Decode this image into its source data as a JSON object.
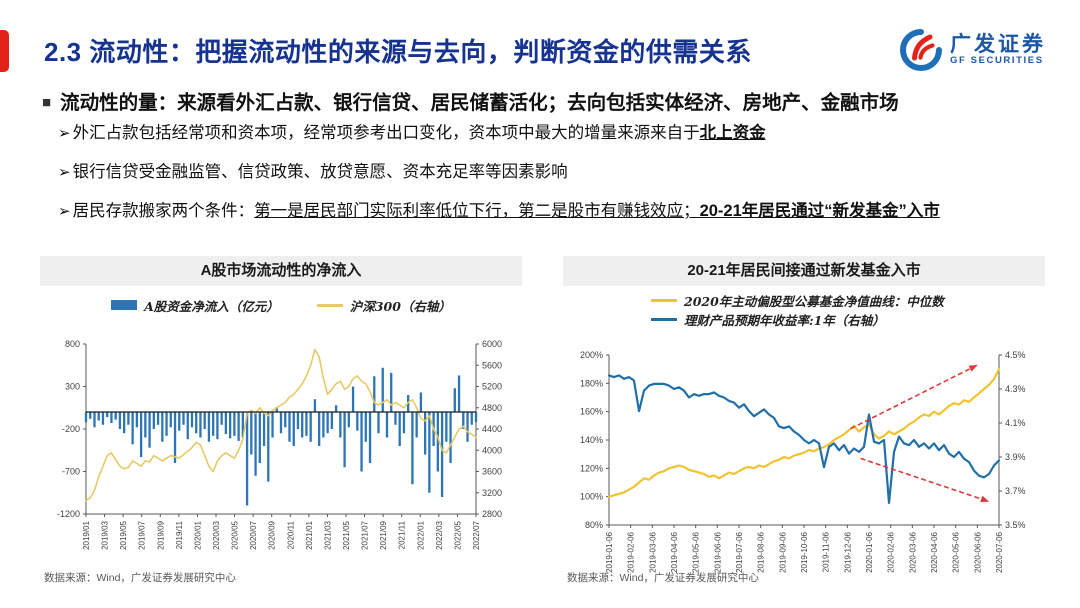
{
  "header": {
    "title": "2.3 流动性：把握流动性的来源与去向，判断资金的供需关系",
    "logo_cn": "广发证券",
    "logo_en": "GF SECURITIES"
  },
  "bullet": {
    "marker": "■",
    "text": "流动性的量：来源看外汇占款、银行信贷、居民储蓄活化；去向包括实体经济、房地产、金融市场"
  },
  "points_marker": "➢",
  "points": [
    {
      "text": "外汇占款包括经常项和资本项，经常项参考出口变化，资本项中最大的增量来源来自于",
      "strong": "北上资金"
    },
    {
      "text": "银行信贷受金融监管、信贷政策、放贷意愿、资本充足率等因素影响"
    },
    {
      "text": "居民存款搬家两个条件：",
      "underline": "第一是居民部门实际利率低位下行，第二是股市有赚钱效应；",
      "strong": "20-21年居民通过“新发基金”入市"
    }
  ],
  "colors": {
    "accent_red": "#E2231A",
    "title_blue": "#16338F",
    "logo_blue": "#1B57A6",
    "banner_gray": "#EFEFEF",
    "arrow_red": "#D93B3B"
  },
  "chart_data": [
    {
      "type": "bar",
      "title": "A股市场流动性的净流入",
      "legend": [
        {
          "label": "A股资金净流入（亿元）",
          "swatch": "bar"
        },
        {
          "label": "沪深300（右轴）",
          "swatch": "line"
        }
      ],
      "y_left": {
        "min": -1200,
        "max": 800,
        "ticks": [
          800,
          300,
          -200,
          -700,
          -1200
        ]
      },
      "y_right": {
        "min": 2800,
        "max": 6000,
        "ticks": [
          6000,
          5600,
          5200,
          4800,
          4400,
          4000,
          3600,
          3200,
          2800
        ]
      },
      "zero_line": true,
      "x_labels": [
        "2019/01",
        "2019/03",
        "2019/05",
        "2019/07",
        "2019/09",
        "2019/11",
        "2020/01",
        "2020/03",
        "2020/05",
        "2020/07",
        "2020/09",
        "2020/11",
        "2021/01",
        "2021/03",
        "2021/05",
        "2021/07",
        "2021/09",
        "2021/11",
        "2022/01",
        "2022/03",
        "2022/05",
        "2022/07"
      ],
      "series": [
        {
          "name": "A股资金净流入（亿元）",
          "type": "bar",
          "axis": "left",
          "color": "#2E75B6",
          "values": [
            -120,
            -80,
            -180,
            -100,
            -150,
            -60,
            -130,
            -90,
            -200,
            -250,
            -150,
            -380,
            -180,
            -530,
            -300,
            -420,
            -200,
            -150,
            -350,
            -280,
            -180,
            -600,
            -220,
            -150,
            -320,
            -180,
            -250,
            -300,
            -200,
            -350,
            -280,
            -320,
            -150,
            -260,
            -310,
            -280,
            -340,
            -300,
            -1100,
            -500,
            -750,
            -600,
            -400,
            -820,
            -300,
            60,
            -250,
            -180,
            -350,
            -400,
            -200,
            -300,
            -280,
            -350,
            150,
            -400,
            -300,
            -250,
            -200,
            80,
            -300,
            -650,
            -180,
            300,
            -220,
            -700,
            -350,
            -600,
            420,
            -250,
            520,
            -300,
            460,
            -150,
            -400,
            -250,
            200,
            -850,
            -300,
            230,
            -500,
            -950,
            -400,
            -700,
            -1000,
            -350,
            -600,
            280,
            430,
            -200,
            -350,
            -150,
            -120
          ]
        },
        {
          "name": "沪深300（右轴）",
          "type": "line",
          "axis": "right",
          "color": "#E8C968",
          "width": 1.6,
          "values": [
            3050,
            3100,
            3250,
            3500,
            3700,
            3900,
            3950,
            3820,
            3700,
            3650,
            3680,
            3800,
            3750,
            3700,
            3800,
            3780,
            3900,
            3850,
            3800,
            3850,
            3900,
            3880,
            3850,
            3920,
            3980,
            4050,
            4150,
            4100,
            3900,
            3700,
            3600,
            3800,
            3900,
            3950,
            3900,
            3850,
            4000,
            4200,
            4700,
            4750,
            4700,
            4800,
            4700,
            4650,
            4750,
            4800,
            4850,
            4900,
            5000,
            5050,
            5150,
            5250,
            5400,
            5600,
            5900,
            5750,
            5350,
            5050,
            5150,
            5250,
            5300,
            5150,
            5200,
            5350,
            5400,
            5300,
            5250,
            5100,
            4900,
            4850,
            4900,
            4950,
            4850,
            4900,
            4850,
            4800,
            4900,
            4950,
            4800,
            4600,
            4550,
            4650,
            4400,
            4250,
            4000,
            3950,
            4100,
            4250,
            4400,
            4450,
            4350,
            4300,
            4250
          ]
        }
      ],
      "source": "数据来源：Wind，广发证券发展研究中心"
    },
    {
      "type": "line",
      "title": "20-21年居民间接通过新发基金入市",
      "legend": [
        {
          "label": "2020年主动偏股型公募基金净值曲线：中位数",
          "swatch": "line"
        },
        {
          "label": "理财产品预期年收益率:1年（右轴）",
          "swatch": "line"
        }
      ],
      "y_left": {
        "min": 80,
        "max": 200,
        "ticks": [
          200,
          180,
          160,
          140,
          120,
          100,
          80
        ],
        "suffix": "%"
      },
      "y_right": {
        "min": 3.5,
        "max": 4.5,
        "ticks": [
          4.5,
          4.3,
          4.1,
          3.9,
          3.7,
          3.5
        ],
        "suffix": "%",
        "fmt": 1
      },
      "x_labels": [
        "2019-01-06",
        "2019-02-06",
        "2019-03-06",
        "2019-04-06",
        "2019-05-06",
        "2019-06-06",
        "2019-07-06",
        "2019-08-06",
        "2019-09-06",
        "2019-10-06",
        "2019-11-06",
        "2019-12-06",
        "2020-01-06",
        "2020-02-06",
        "2020-03-06",
        "2020-04-06",
        "2020-05-06",
        "2020-06-06",
        "2020-07-06"
      ],
      "series": [
        {
          "name": "2020年主动偏股型公募基金净值曲线：中位数",
          "type": "line",
          "axis": "left",
          "color": "#F2C230",
          "width": 2.2,
          "values": [
            100,
            101,
            102,
            103,
            105,
            107,
            110,
            113,
            112,
            115,
            117,
            118,
            120,
            121,
            122,
            121,
            119,
            118,
            117,
            116,
            114,
            115,
            113,
            115,
            117,
            116,
            118,
            120,
            121,
            120,
            122,
            121,
            123,
            125,
            126,
            128,
            127,
            129,
            130,
            131,
            133,
            132,
            134,
            135,
            137,
            140,
            142,
            144,
            147,
            150,
            146,
            149,
            151,
            144,
            141,
            143,
            146,
            144,
            146,
            148,
            151,
            153,
            156,
            158,
            157,
            160,
            158,
            161,
            164,
            166,
            165,
            168,
            167,
            170,
            173,
            176,
            179,
            183,
            190
          ]
        },
        {
          "name": "理财产品预期年收益率:1年（右轴）",
          "type": "line",
          "axis": "right",
          "color": "#1F6FA8",
          "width": 2.2,
          "values": [
            4.38,
            4.37,
            4.38,
            4.36,
            4.37,
            4.35,
            4.17,
            4.29,
            4.32,
            4.33,
            4.33,
            4.33,
            4.32,
            4.3,
            4.31,
            4.29,
            4.25,
            4.27,
            4.26,
            4.27,
            4.27,
            4.28,
            4.26,
            4.25,
            4.23,
            4.22,
            4.19,
            4.21,
            4.17,
            4.14,
            4.16,
            4.18,
            4.15,
            4.13,
            4.08,
            4.07,
            4.08,
            4.05,
            4.03,
            4.0,
            3.98,
            4.0,
            3.98,
            3.84,
            3.96,
            3.98,
            3.94,
            3.97,
            3.92,
            3.95,
            3.93,
            3.96,
            4.15,
            3.99,
            3.98,
            4.0,
            3.63,
            3.93,
            4.02,
            3.98,
            3.97,
            4.0,
            3.96,
            3.98,
            3.95,
            3.98,
            3.94,
            3.97,
            3.92,
            3.9,
            3.93,
            3.89,
            3.87,
            3.82,
            3.79,
            3.78,
            3.8,
            3.85,
            3.88
          ]
        }
      ],
      "annotations": [
        {
          "type": "arrow",
          "x1": 0.62,
          "y1": 148,
          "x2": 0.945,
          "y2": 193,
          "color": "#D93B3B"
        },
        {
          "type": "arrow",
          "x1": 0.645,
          "y1": 127,
          "x2": 0.975,
          "y2": 96.5,
          "color": "#D93B3B"
        }
      ],
      "source": "数据来源：Wind，广发证券发展研究中心"
    }
  ]
}
